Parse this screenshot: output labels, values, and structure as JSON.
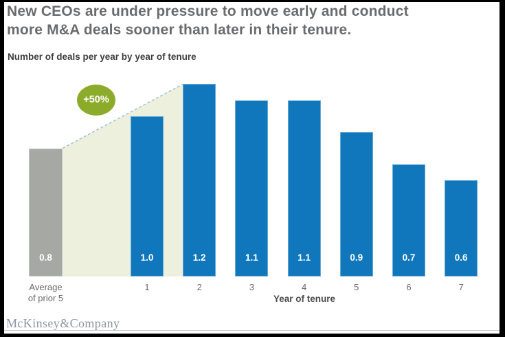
{
  "header": {
    "title_lines": [
      "New CEOs are under pressure to move early and conduct",
      "more M&A deals sooner than later in their tenure."
    ],
    "subtitle": "Number of deals per year by year of tenure"
  },
  "chart_data": {
    "type": "bar",
    "title": "Number of deals per year by year of tenure",
    "xlabel": "Year of tenure",
    "categories": [
      "1",
      "2",
      "3",
      "4",
      "5",
      "6",
      "7"
    ],
    "values": [
      1.0,
      1.2,
      1.1,
      1.1,
      0.9,
      0.7,
      0.6
    ],
    "value_labels": [
      "1.0",
      "1.2",
      "1.1",
      "1.1",
      "0.9",
      "0.7",
      "0.6"
    ],
    "baseline_category": {
      "label_lines": [
        "Average",
        "of prior 5"
      ],
      "value": 0.8,
      "value_label": "0.8",
      "color": "#a5a8a3"
    },
    "annotation": {
      "label": "+50%",
      "color": "#8dab2a"
    },
    "bar_color": "#1077bc",
    "band_color": "#edf0dd",
    "dash_color": "#a3c0d2",
    "ylim": [
      0,
      1.3
    ],
    "grid": false,
    "legend": false
  },
  "footer": {
    "logo": "McKinsey&Company"
  }
}
